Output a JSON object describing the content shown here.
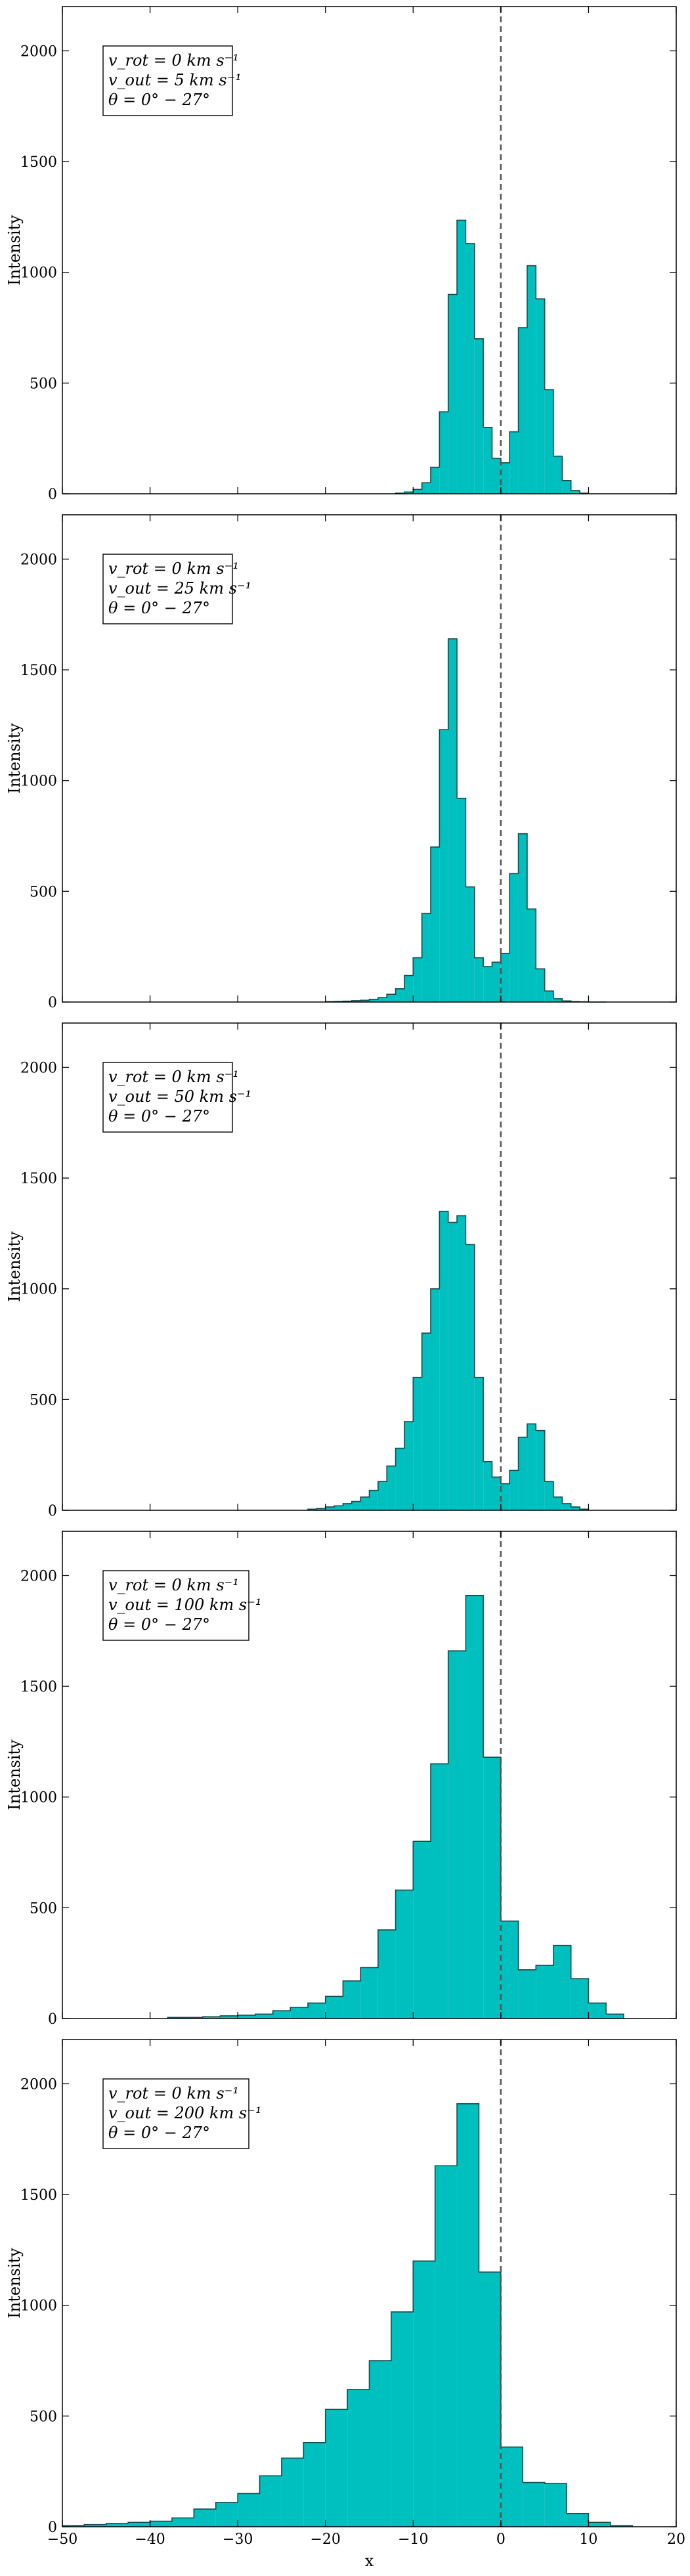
{
  "figure": {
    "xlabel": "x",
    "ylabel": "Intensity",
    "bar_color": "#00bfbf",
    "edge_color": "#1a4a4a",
    "vline_color": "#555555"
  },
  "chart_data": [
    {
      "type": "bar",
      "ylabel": "Intensity",
      "xlim": [
        -50,
        20
      ],
      "ylim": [
        0,
        2200
      ],
      "xticks": [
        -50,
        -40,
        -30,
        -20,
        -10,
        0,
        10,
        20
      ],
      "yticks": [
        0,
        500,
        1000,
        1500,
        2000
      ],
      "vline_x": 0,
      "legend": [
        "v_rot = 0 km s⁻¹",
        "v_out = 5 km s⁻¹",
        "θ = 0° − 27°"
      ],
      "legend_position": "top-left",
      "bin_edges": [
        -12,
        -11,
        -10,
        -9,
        -8,
        -7,
        -6,
        -5,
        -4,
        -3,
        -2,
        -1,
        0,
        1,
        2,
        3,
        4,
        5,
        6,
        7,
        8,
        9,
        10
      ],
      "values": [
        3,
        8,
        20,
        50,
        120,
        370,
        900,
        1235,
        1130,
        700,
        300,
        160,
        140,
        280,
        750,
        1030,
        880,
        470,
        170,
        60,
        15,
        3
      ]
    },
    {
      "type": "bar",
      "ylabel": "Intensity",
      "xlim": [
        -50,
        20
      ],
      "ylim": [
        0,
        2200
      ],
      "xticks": [
        -50,
        -40,
        -30,
        -20,
        -10,
        0,
        10,
        20
      ],
      "yticks": [
        0,
        500,
        1000,
        1500,
        2000
      ],
      "vline_x": 0,
      "legend": [
        "v_rot = 0 km s⁻¹",
        "v_out = 25 km s⁻¹",
        "θ = 0° − 27°"
      ],
      "legend_position": "top-left",
      "bin_edges": [
        -20,
        -19,
        -18,
        -17,
        -16,
        -15,
        -14,
        -13,
        -12,
        -11,
        -10,
        -9,
        -8,
        -7,
        -6,
        -5,
        -4,
        -3,
        -2,
        -1,
        0,
        1,
        2,
        3,
        4,
        5,
        6,
        7,
        8,
        9,
        10,
        11,
        12
      ],
      "values": [
        2,
        3,
        4,
        6,
        8,
        12,
        20,
        35,
        60,
        120,
        200,
        400,
        700,
        1230,
        1640,
        920,
        520,
        200,
        160,
        180,
        220,
        580,
        760,
        420,
        150,
        50,
        15,
        5,
        2,
        1,
        0,
        0
      ]
    },
    {
      "type": "bar",
      "ylabel": "Intensity",
      "xlim": [
        -50,
        20
      ],
      "ylim": [
        0,
        2200
      ],
      "xticks": [
        -50,
        -40,
        -30,
        -20,
        -10,
        0,
        10,
        20
      ],
      "yticks": [
        0,
        500,
        1000,
        1500,
        2000
      ],
      "vline_x": 0,
      "legend": [
        "v_rot = 0 km s⁻¹",
        "v_out = 50 km s⁻¹",
        "θ = 0° − 27°"
      ],
      "legend_position": "top-left",
      "bin_edges": [
        -22,
        -21,
        -20,
        -19,
        -18,
        -17,
        -16,
        -15,
        -14,
        -13,
        -12,
        -11,
        -10,
        -9,
        -8,
        -7,
        -6,
        -5,
        -4,
        -3,
        -2,
        -1,
        0,
        1,
        2,
        3,
        4,
        5,
        6,
        7,
        8,
        9,
        10
      ],
      "values": [
        5,
        8,
        15,
        20,
        30,
        40,
        60,
        90,
        130,
        200,
        280,
        400,
        600,
        800,
        1000,
        1350,
        1300,
        1330,
        1200,
        600,
        220,
        150,
        120,
        180,
        330,
        390,
        360,
        130,
        60,
        30,
        15,
        5
      ]
    },
    {
      "type": "bar",
      "ylabel": "Intensity",
      "xlim": [
        -50,
        20
      ],
      "ylim": [
        0,
        2200
      ],
      "xticks": [
        -50,
        -40,
        -30,
        -20,
        -10,
        0,
        10,
        20
      ],
      "yticks": [
        0,
        500,
        1000,
        1500,
        2000
      ],
      "vline_x": 0,
      "legend": [
        "v_rot = 0 km s⁻¹",
        "v_out = 100 km s⁻¹",
        "θ = 0° − 27°"
      ],
      "legend_position": "top-left",
      "bin_edges": [
        -38,
        -36,
        -34,
        -32,
        -30,
        -28,
        -26,
        -24,
        -22,
        -20,
        -18,
        -16,
        -14,
        -12,
        -10,
        -8,
        -6,
        -4,
        -2,
        0,
        2,
        4,
        6,
        8,
        10,
        12,
        14
      ],
      "values": [
        5,
        5,
        8,
        12,
        15,
        20,
        35,
        50,
        70,
        100,
        170,
        230,
        400,
        580,
        800,
        1150,
        1660,
        1910,
        1180,
        440,
        220,
        240,
        330,
        180,
        70,
        20
      ]
    },
    {
      "type": "bar",
      "ylabel": "Intensity",
      "xlim": [
        -50,
        20
      ],
      "ylim": [
        0,
        2200
      ],
      "xticks": [
        -50,
        -40,
        -30,
        -20,
        -10,
        0,
        10,
        20
      ],
      "yticks": [
        0,
        500,
        1000,
        1500,
        2000
      ],
      "vline_x": 0,
      "legend": [
        "v_rot = 0 km s⁻¹",
        "v_out = 200 km s⁻¹",
        "θ = 0° − 27°"
      ],
      "legend_position": "top-left",
      "xlabel": "x",
      "bin_edges": [
        -50,
        -47.5,
        -45,
        -42.5,
        -40,
        -37.5,
        -35,
        -32.5,
        -30,
        -27.5,
        -25,
        -22.5,
        -20,
        -17.5,
        -15,
        -12.5,
        -10,
        -7.5,
        -5,
        -2.5,
        0,
        2.5,
        5,
        7.5,
        10,
        12.5,
        15
      ],
      "values": [
        5,
        10,
        15,
        20,
        25,
        40,
        80,
        110,
        150,
        230,
        310,
        380,
        530,
        620,
        750,
        970,
        1200,
        1630,
        1910,
        1150,
        360,
        200,
        195,
        60,
        20,
        5
      ]
    }
  ]
}
